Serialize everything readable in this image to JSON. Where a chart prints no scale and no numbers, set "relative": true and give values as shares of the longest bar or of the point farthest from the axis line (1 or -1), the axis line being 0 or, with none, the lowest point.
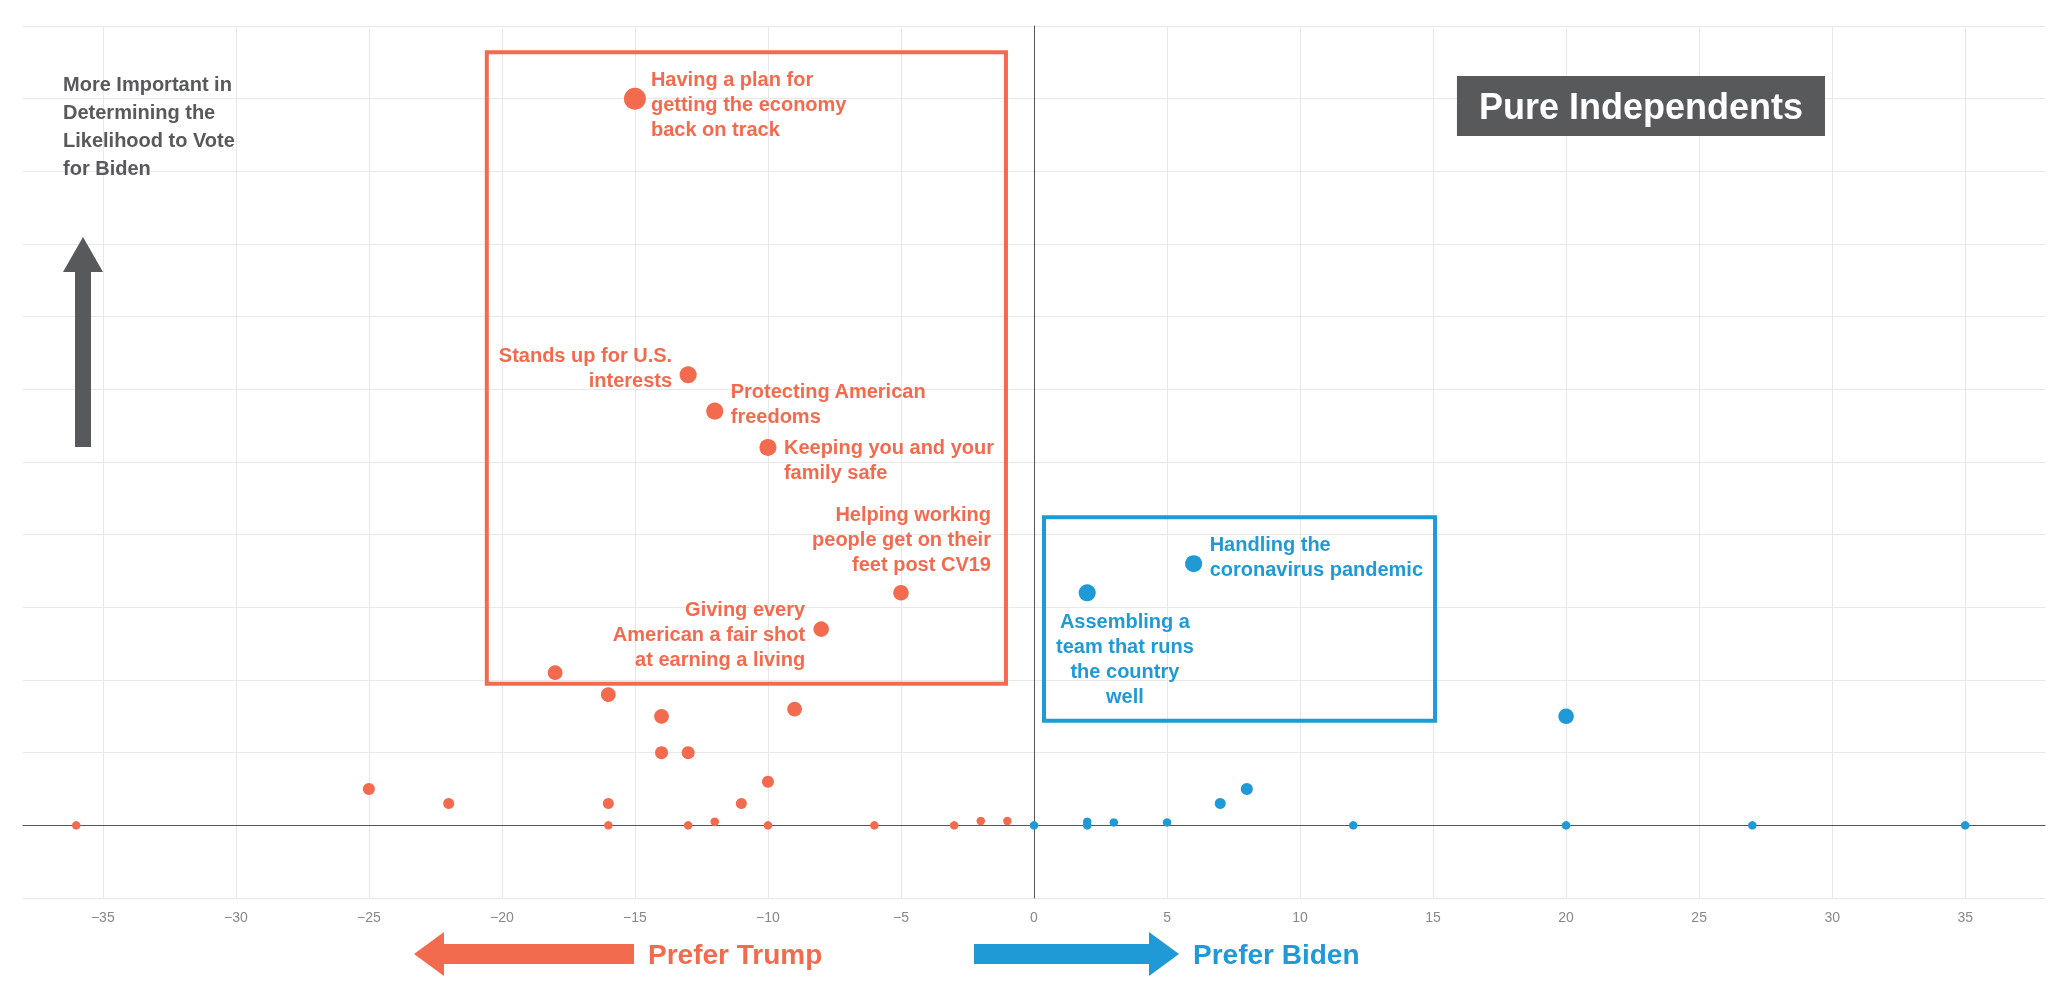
{
  "chart_data": {
    "type": "bubble",
    "title": "Pure Independents",
    "ylabel": "More Important in Determining the Likelihood to Vote for Biden",
    "relative": true,
    "marker": "circle",
    "grid": true,
    "xlim": [
      -38,
      38
    ],
    "xticks": [
      -35,
      -30,
      -25,
      -20,
      -15,
      -10,
      -5,
      0,
      5,
      10,
      15,
      20,
      25,
      30,
      35
    ],
    "series": [
      {
        "color": "#f26b4e",
        "x": [
          -15,
          -13,
          -12,
          -10,
          -5,
          -8,
          -18,
          -16,
          -14,
          -9,
          -14,
          -13,
          -10,
          -25,
          -22,
          -16,
          -11,
          -36,
          -16,
          -13,
          -12,
          -10,
          -6,
          -3,
          -2,
          -1
        ],
        "values": [
          1,
          0.62,
          0.57,
          0.52,
          0.32,
          0.27,
          0.21,
          0.18,
          0.15,
          0.16,
          0.1,
          0.1,
          0.06,
          0.05,
          0.03,
          0.03,
          0.03,
          0,
          0,
          0,
          0.005,
          0,
          0,
          0,
          0.006,
          0.006
        ],
        "sizes": [
          1,
          0.6,
          0.6,
          0.6,
          0.5,
          0.5,
          0.45,
          0.45,
          0.45,
          0.45,
          0.35,
          0.35,
          0.3,
          0.3,
          0.25,
          0.25,
          0.25,
          0.15,
          0.15,
          0.15,
          0.15,
          0.15,
          0.15,
          0.15,
          0.15,
          0.15
        ]
      },
      {
        "color": "#1f9ad6",
        "x": [
          2,
          6,
          20,
          8,
          7,
          0,
          2,
          2,
          3,
          5,
          12,
          20,
          27,
          35
        ],
        "values": [
          0.32,
          0.36,
          0.15,
          0.05,
          0.03,
          0,
          0.005,
          0,
          0.004,
          0.004,
          0,
          0,
          0,
          0
        ],
        "sizes": [
          0.6,
          0.6,
          0.5,
          0.3,
          0.25,
          0.15,
          0.15,
          0.15,
          0.15,
          0.15,
          0.15,
          0.15,
          0.15,
          0.15
        ]
      }
    ],
    "annotations": [
      {
        "text": "Having a plan for getting the economy back on track",
        "x": -15,
        "y": 1
      },
      {
        "text": "Stands up for U.S. interests",
        "x": -13,
        "y": 0.62
      },
      {
        "text": "Protecting American freedoms",
        "x": -12,
        "y": 0.57
      },
      {
        "text": "Keeping you and your family safe",
        "x": -10,
        "y": 0.52
      },
      {
        "text": "Helping working people get on their feet post CV19",
        "x": -5,
        "y": 0.32
      },
      {
        "text": "Giving every American a fair shot at earning a living",
        "x": -8,
        "y": 0.27
      },
      {
        "text": "Handling the coronavirus pandemic",
        "x": 6,
        "y": 0.36
      },
      {
        "text": "Assembling a team that runs the country well",
        "x": 2,
        "y": 0.32
      },
      "Prefer Trump",
      "Prefer Biden"
    ]
  }
}
